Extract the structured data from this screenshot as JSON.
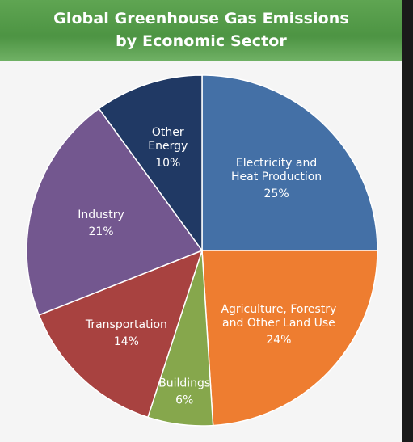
{
  "header": {
    "title_line1": "Global Greenhouse Gas Emissions",
    "title_line2": "by Economic Sector"
  },
  "chart_data": {
    "type": "pie",
    "title": "Global Greenhouse Gas Emissions by Economic Sector",
    "start_angle_deg": 0,
    "direction": "clockwise",
    "slices": [
      {
        "label_lines": [
          "Electricity and",
          "Heat Production"
        ],
        "value": 25,
        "display": "25%",
        "color": "#4470a6"
      },
      {
        "label_lines": [
          "Agriculture, Forestry",
          "and Other Land Use"
        ],
        "value": 24,
        "display": "24%",
        "color": "#ee7d30"
      },
      {
        "label_lines": [
          "Buildings"
        ],
        "value": 6,
        "display": "6%",
        "color": "#86a74c"
      },
      {
        "label_lines": [
          "Transportation"
        ],
        "value": 14,
        "display": "14%",
        "color": "#a84240"
      },
      {
        "label_lines": [
          "Industry"
        ],
        "value": 21,
        "display": "21%",
        "color": "#73578f"
      },
      {
        "label_lines": [
          "Other",
          "Energy"
        ],
        "value": 10,
        "display": "10%",
        "color": "#203964"
      }
    ]
  }
}
